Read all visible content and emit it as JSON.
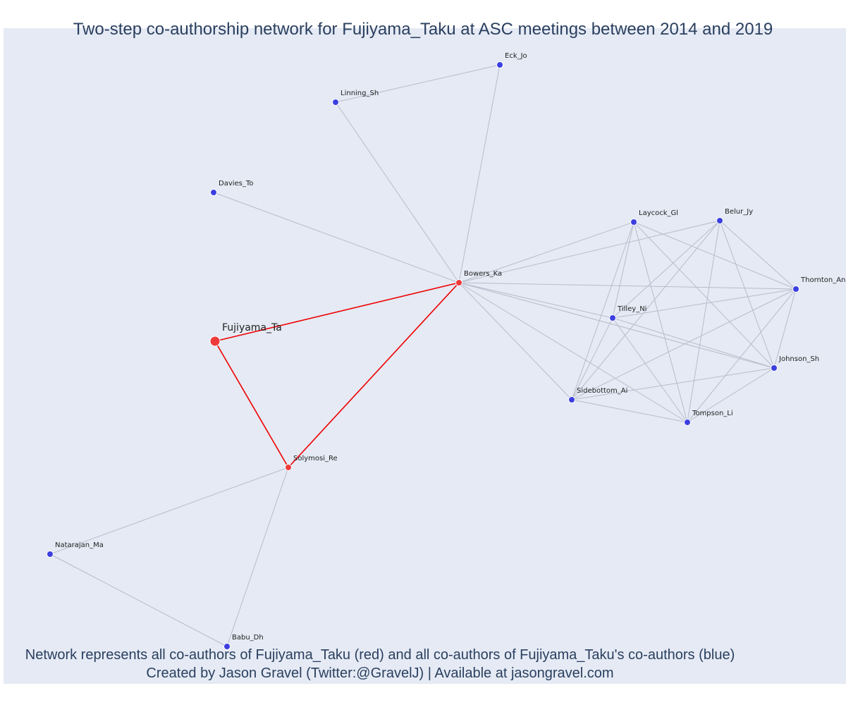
{
  "title": "Two-step co-authorship network for Fujiyama_Taku at ASC meetings between 2014 and 2019",
  "caption_line1": "Network represents all co-authors of Fujiyama_Taku (red) and all co-authors of Fujiyama_Taku's co-authors (blue)",
  "caption_line2": "Created by Jason Gravel (Twitter:@GravelJ) | Available at jasongravel.com",
  "colors": {
    "ego": "#ef3a3a",
    "coauthor": "#ef3a3a",
    "second_step": "#3b3fe0",
    "ego_edge": "#ef0000",
    "other_edge": "#b9bccc"
  },
  "nodes": [
    {
      "id": "Fujiyama_Ta",
      "group": "ego"
    },
    {
      "id": "Bowers_Ka",
      "group": "coauthor"
    },
    {
      "id": "Solymosi_Re",
      "group": "coauthor"
    },
    {
      "id": "Eck_Jo",
      "group": "second_step"
    },
    {
      "id": "Linning_Sh",
      "group": "second_step"
    },
    {
      "id": "Davies_To",
      "group": "second_step"
    },
    {
      "id": "Laycock_Gl",
      "group": "second_step"
    },
    {
      "id": "Belur_Jy",
      "group": "second_step"
    },
    {
      "id": "Thornton_An",
      "group": "second_step"
    },
    {
      "id": "Tilley_Ni",
      "group": "second_step"
    },
    {
      "id": "Johnson_Sh",
      "group": "second_step"
    },
    {
      "id": "Sidebottom_Ai",
      "group": "second_step"
    },
    {
      "id": "Tompson_Li",
      "group": "second_step"
    },
    {
      "id": "Natarajan_Ma",
      "group": "second_step"
    },
    {
      "id": "Babu_Dh",
      "group": "second_step"
    }
  ],
  "edges": [
    [
      "Fujiyama_Ta",
      "Bowers_Ka"
    ],
    [
      "Fujiyama_Ta",
      "Solymosi_Re"
    ],
    [
      "Bowers_Ka",
      "Solymosi_Re"
    ],
    [
      "Bowers_Ka",
      "Eck_Jo"
    ],
    [
      "Bowers_Ka",
      "Linning_Sh"
    ],
    [
      "Eck_Jo",
      "Linning_Sh"
    ],
    [
      "Bowers_Ka",
      "Davies_To"
    ],
    [
      "Bowers_Ka",
      "Laycock_Gl"
    ],
    [
      "Bowers_Ka",
      "Belur_Jy"
    ],
    [
      "Bowers_Ka",
      "Thornton_An"
    ],
    [
      "Bowers_Ka",
      "Tilley_Ni"
    ],
    [
      "Bowers_Ka",
      "Johnson_Sh"
    ],
    [
      "Bowers_Ka",
      "Sidebottom_Ai"
    ],
    [
      "Bowers_Ka",
      "Tompson_Li"
    ],
    [
      "Laycock_Gl",
      "Thornton_An"
    ],
    [
      "Laycock_Gl",
      "Tilley_Ni"
    ],
    [
      "Laycock_Gl",
      "Johnson_Sh"
    ],
    [
      "Laycock_Gl",
      "Sidebottom_Ai"
    ],
    [
      "Laycock_Gl",
      "Tompson_Li"
    ],
    [
      "Belur_Jy",
      "Thornton_An"
    ],
    [
      "Belur_Jy",
      "Tilley_Ni"
    ],
    [
      "Belur_Jy",
      "Johnson_Sh"
    ],
    [
      "Belur_Jy",
      "Sidebottom_Ai"
    ],
    [
      "Belur_Jy",
      "Tompson_Li"
    ],
    [
      "Thornton_An",
      "Tilley_Ni"
    ],
    [
      "Thornton_An",
      "Johnson_Sh"
    ],
    [
      "Thornton_An",
      "Sidebottom_Ai"
    ],
    [
      "Thornton_An",
      "Tompson_Li"
    ],
    [
      "Tilley_Ni",
      "Johnson_Sh"
    ],
    [
      "Tilley_Ni",
      "Sidebottom_Ai"
    ],
    [
      "Tilley_Ni",
      "Tompson_Li"
    ],
    [
      "Johnson_Sh",
      "Sidebottom_Ai"
    ],
    [
      "Johnson_Sh",
      "Tompson_Li"
    ],
    [
      "Sidebottom_Ai",
      "Tompson_Li"
    ],
    [
      "Solymosi_Re",
      "Natarajan_Ma"
    ],
    [
      "Solymosi_Re",
      "Babu_Dh"
    ],
    [
      "Natarajan_Ma",
      "Babu_Dh"
    ]
  ]
}
